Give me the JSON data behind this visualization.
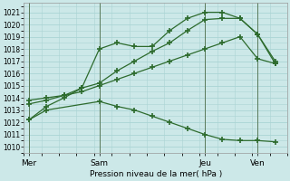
{
  "title": "Pression niveau de la mer( hPa )",
  "bg_color": "#cce8e8",
  "grid_color": "#aad4d4",
  "line_color": "#2d6b2d",
  "xtick_labels": [
    "Mer",
    "Sam",
    "Jeu",
    "Ven"
  ],
  "xtick_positions": [
    0,
    4,
    10,
    13
  ],
  "xlim": [
    -0.3,
    14.5
  ],
  "ylim": [
    1009.6,
    1021.8
  ],
  "yticks": [
    1010,
    1011,
    1012,
    1013,
    1014,
    1015,
    1016,
    1017,
    1018,
    1019,
    1020,
    1021
  ],
  "vlines": [
    0,
    4,
    10,
    13
  ],
  "series": [
    {
      "x": [
        0,
        1,
        2,
        3,
        4,
        5,
        6,
        7,
        8,
        9,
        10,
        11,
        12,
        13,
        14
      ],
      "y": [
        1012.2,
        1013.3,
        1014.0,
        1014.8,
        1015.2,
        1016.2,
        1017.0,
        1017.8,
        1018.5,
        1019.5,
        1020.4,
        1020.5,
        1020.5,
        1019.2,
        1017.0
      ]
    },
    {
      "x": [
        0,
        1,
        2,
        3,
        4,
        5,
        6,
        7,
        8,
        9,
        10,
        11,
        12,
        13,
        14
      ],
      "y": [
        1013.5,
        1013.8,
        1014.2,
        1014.8,
        1018.0,
        1018.5,
        1018.2,
        1018.2,
        1019.5,
        1020.5,
        1021.0,
        1021.0,
        1020.5,
        1019.2,
        1016.8
      ]
    },
    {
      "x": [
        0,
        1,
        2,
        3,
        4,
        5,
        6,
        7,
        8,
        9,
        10,
        11,
        12,
        13,
        14
      ],
      "y": [
        1013.8,
        1014.0,
        1014.2,
        1014.5,
        1015.0,
        1015.5,
        1016.0,
        1016.5,
        1017.0,
        1017.5,
        1018.0,
        1018.5,
        1019.0,
        1017.2,
        1016.8
      ]
    },
    {
      "x": [
        0,
        1,
        4,
        5,
        6,
        7,
        8,
        9,
        10,
        11,
        12,
        13,
        14
      ],
      "y": [
        1012.2,
        1013.0,
        1013.7,
        1013.3,
        1013.0,
        1012.5,
        1012.0,
        1011.5,
        1011.0,
        1010.6,
        1010.5,
        1010.5,
        1010.4
      ]
    }
  ]
}
